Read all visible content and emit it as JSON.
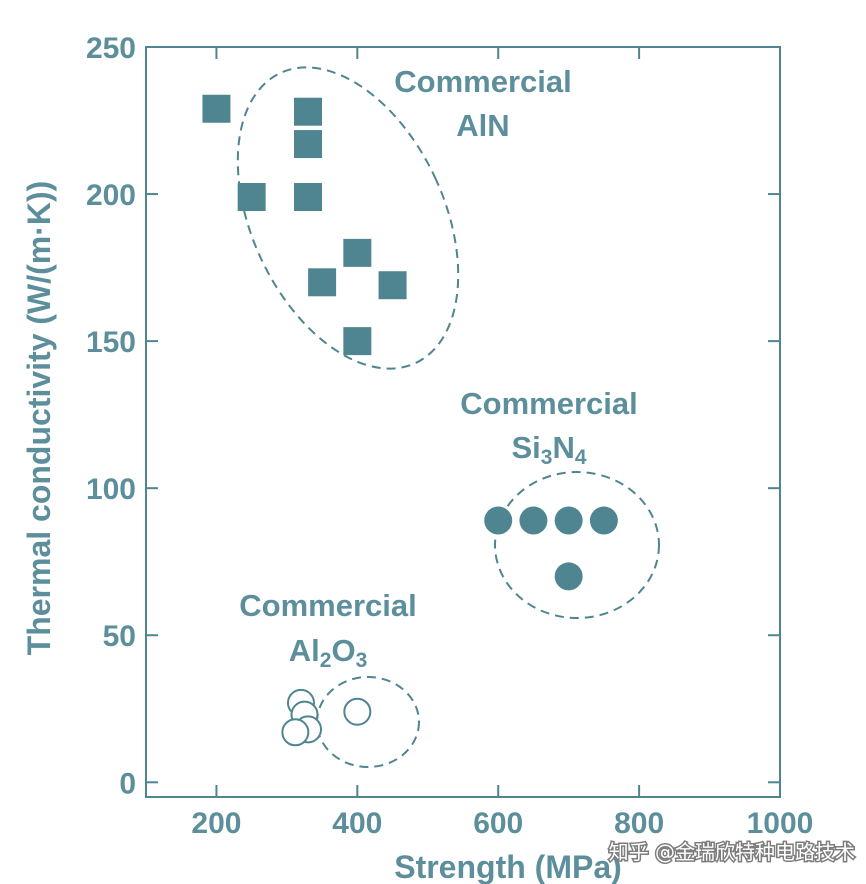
{
  "colors": {
    "accent": "#4f8590",
    "axis": "#4f8590",
    "text": "#5c8f9b",
    "watermark_text": "#ffffff",
    "background": "#ffffff"
  },
  "chart_data": {
    "type": "scatter",
    "xlabel": "Strength (MPa)",
    "ylabel": "Thermal conductivity (W/(m·K))",
    "xlim": [
      100,
      1000
    ],
    "ylim": [
      -5,
      250
    ],
    "x_ticks": [
      200,
      400,
      600,
      800,
      1000
    ],
    "y_ticks": [
      0,
      50,
      100,
      150,
      200,
      250
    ],
    "series": [
      {
        "name": "Commercial AlN",
        "label_line1": "Commercial",
        "label_line2": "AlN",
        "marker": "filled-square",
        "points": [
          {
            "x": 200,
            "y": 229
          },
          {
            "x": 330,
            "y": 228
          },
          {
            "x": 330,
            "y": 217
          },
          {
            "x": 250,
            "y": 199
          },
          {
            "x": 330,
            "y": 199
          },
          {
            "x": 400,
            "y": 180
          },
          {
            "x": 350,
            "y": 170
          },
          {
            "x": 450,
            "y": 169
          },
          {
            "x": 400,
            "y": 150
          }
        ]
      },
      {
        "name": "Commercial Si3N4",
        "label_line1": "Commercial",
        "label_line2_main": "Si",
        "label_line2_sub1": "3",
        "label_line2_mid": "N",
        "label_line2_sub2": "4",
        "marker": "filled-circle",
        "points": [
          {
            "x": 600,
            "y": 89
          },
          {
            "x": 650,
            "y": 89
          },
          {
            "x": 700,
            "y": 89
          },
          {
            "x": 750,
            "y": 89
          },
          {
            "x": 700,
            "y": 70
          }
        ]
      },
      {
        "name": "Commercial Al2O3",
        "label_line1": "Commercial",
        "label_line2_main": "Al",
        "label_line2_sub1": "2",
        "label_line2_mid": "O",
        "label_line2_sub2": "3",
        "marker": "open-circle",
        "points": [
          {
            "x": 320,
            "y": 27
          },
          {
            "x": 325,
            "y": 23
          },
          {
            "x": 330,
            "y": 18
          },
          {
            "x": 312,
            "y": 17
          },
          {
            "x": 400,
            "y": 24
          }
        ]
      }
    ]
  },
  "watermark": {
    "text": "知乎 @金瑞欣特种电路技术"
  }
}
